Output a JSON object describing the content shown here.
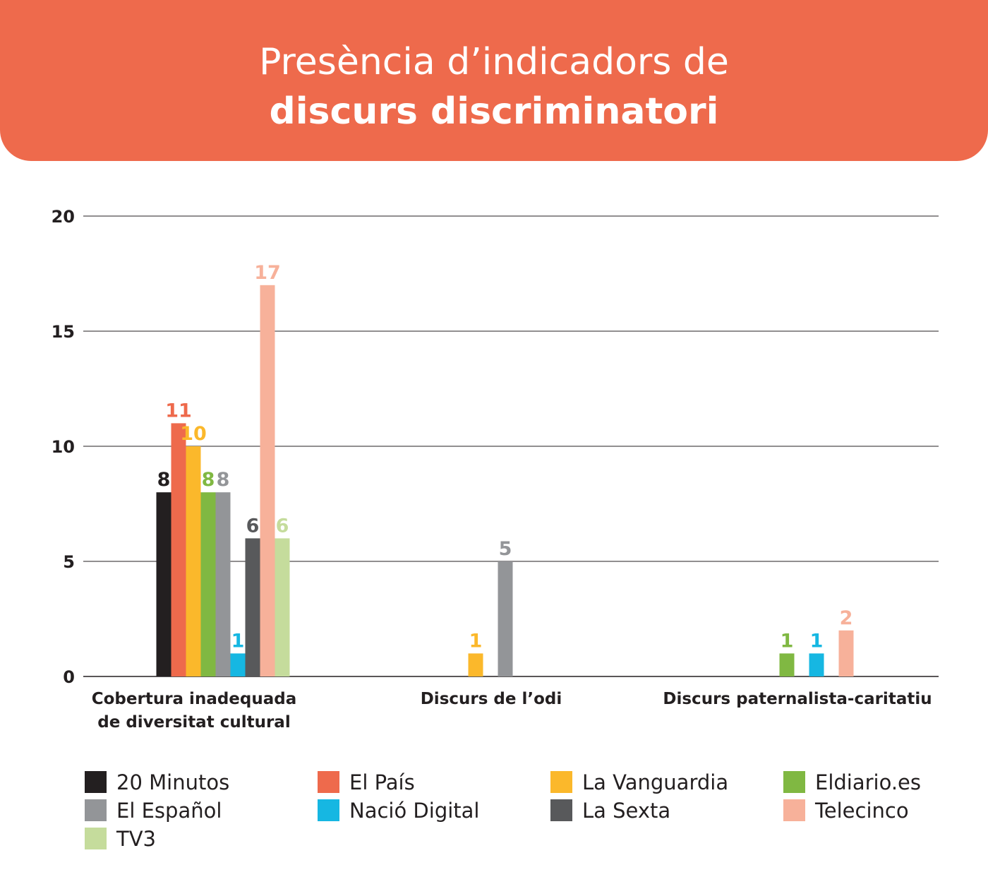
{
  "header": {
    "title_line1": "Presència d’indicadors de",
    "title_line2": "discurs discriminatori",
    "background": "#ee6a4c"
  },
  "chart_data": {
    "type": "bar",
    "title": "Presència d’indicadors de discurs discriminatori",
    "xlabel": "",
    "ylabel": "",
    "ylim": [
      0,
      20
    ],
    "yticks": [
      "0",
      "5",
      "10",
      "15",
      "20"
    ],
    "grid": true,
    "legend_position": "bottom",
    "categories": [
      [
        "Cobertura inadequada",
        "de diversitat cultural"
      ],
      [
        "Discurs de l’odi"
      ],
      [
        "Discurs paternalista-caritatiu"
      ]
    ],
    "series": [
      {
        "name": "20 Minutos",
        "color": "#231f20",
        "values": [
          8,
          null,
          null
        ]
      },
      {
        "name": "El País",
        "color": "#ee6a4c",
        "values": [
          11,
          null,
          null
        ]
      },
      {
        "name": "La Vanguardia",
        "color": "#fbb82b",
        "values": [
          10,
          1,
          null
        ]
      },
      {
        "name": "Eldiario.es",
        "color": "#80b842",
        "values": [
          8,
          null,
          1
        ]
      },
      {
        "name": "El Español",
        "color": "#939598",
        "values": [
          8,
          5,
          null
        ]
      },
      {
        "name": "Nació Digital",
        "color": "#16b7e2",
        "values": [
          1,
          null,
          1
        ]
      },
      {
        "name": "La Sexta",
        "color": "#58595b",
        "values": [
          6,
          null,
          null
        ]
      },
      {
        "name": "Telecinco",
        "color": "#f7b19a",
        "values": [
          17,
          null,
          2
        ]
      },
      {
        "name": "TV3",
        "color": "#c5dc9c",
        "values": [
          6,
          null,
          null
        ]
      }
    ]
  }
}
